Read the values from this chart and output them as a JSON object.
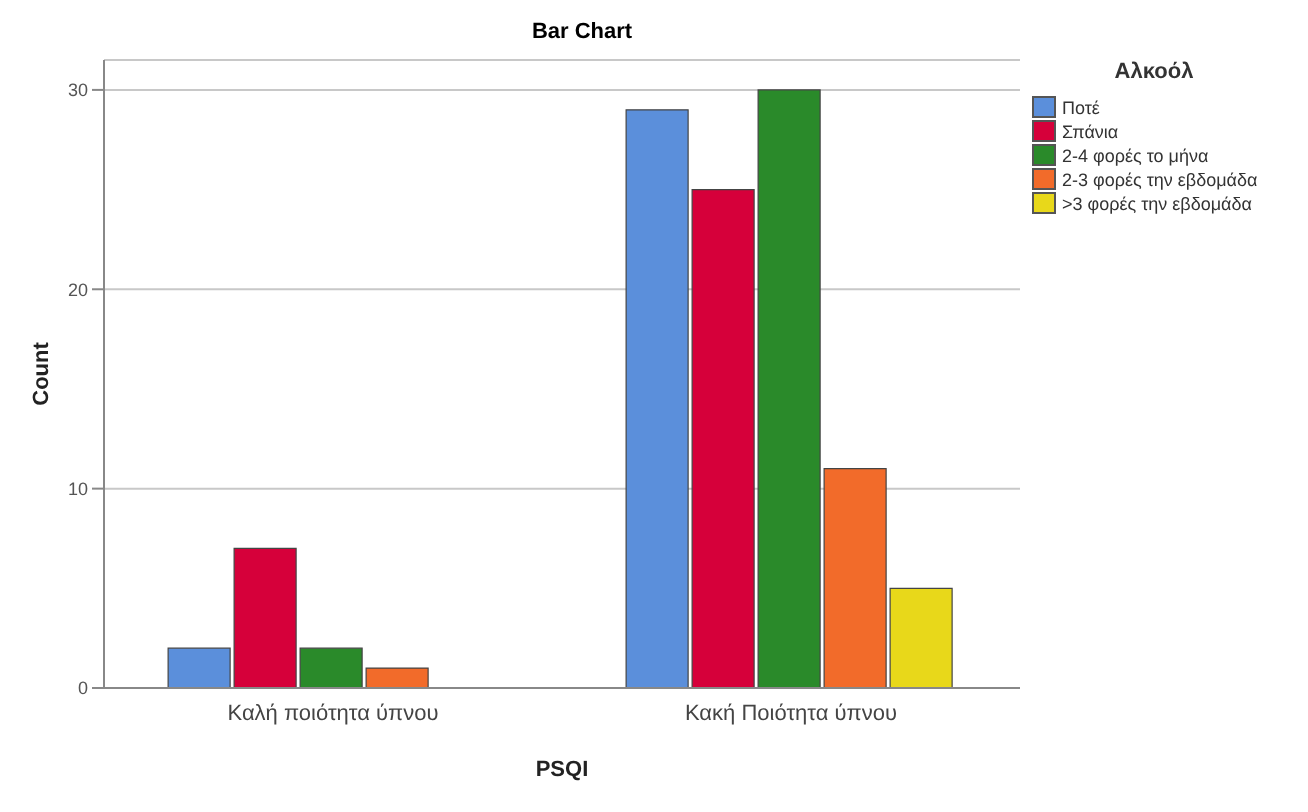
{
  "chart_data": {
    "type": "bar",
    "title": "Bar Chart",
    "xlabel": "PSQI",
    "ylabel": "Count",
    "legend_title": "Αλκοόλ",
    "categories": [
      "Καλή ποιότητα ύπνου",
      "Κακή Ποιότητα ύπνου"
    ],
    "series": [
      {
        "name": "Ποτέ",
        "color": "#5b8fdb",
        "values": [
          2,
          29
        ]
      },
      {
        "name": "Σπάνια",
        "color": "#d6003a",
        "values": [
          7,
          25
        ]
      },
      {
        "name": "2-4 φορές το μήνα",
        "color": "#2a8a2a",
        "values": [
          2,
          30
        ]
      },
      {
        "name": "2-3 φορές την εβδομάδα",
        "color": "#f26b2a",
        "values": [
          1,
          11
        ]
      },
      {
        "name": ">3 φορές την εβδομάδα",
        "color": "#e8d81a",
        "values": [
          null,
          5
        ]
      }
    ],
    "ylim": [
      0,
      31.5
    ],
    "yticks": [
      0,
      10,
      20,
      30
    ],
    "grid": "y",
    "legend": "top right"
  }
}
